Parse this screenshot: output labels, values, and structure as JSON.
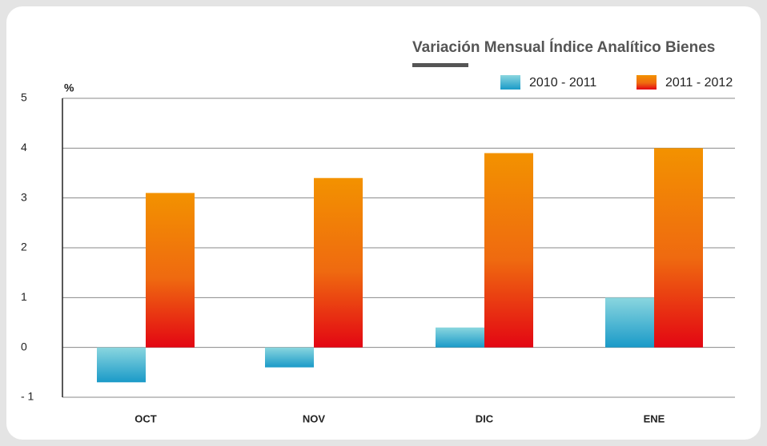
{
  "chart_data": {
    "type": "bar",
    "title": "Variación Mensual Índice Analítico Bienes",
    "y_label": "%",
    "categories": [
      "OCT",
      "NOV",
      "DIC",
      "ENE"
    ],
    "series": [
      {
        "name": "2010 - 2011",
        "color": "#1a9ac8",
        "values": [
          -0.7,
          -0.4,
          0.4,
          1.0
        ]
      },
      {
        "name": "2011 - 2012",
        "color": "#e30613",
        "values": [
          3.1,
          3.4,
          3.9,
          4.0
        ]
      }
    ],
    "ylim": [
      -1,
      5
    ],
    "yticks": [
      {
        "value": -1,
        "label": "- 1"
      },
      0,
      1,
      2,
      3,
      4,
      5
    ],
    "grid": true
  }
}
